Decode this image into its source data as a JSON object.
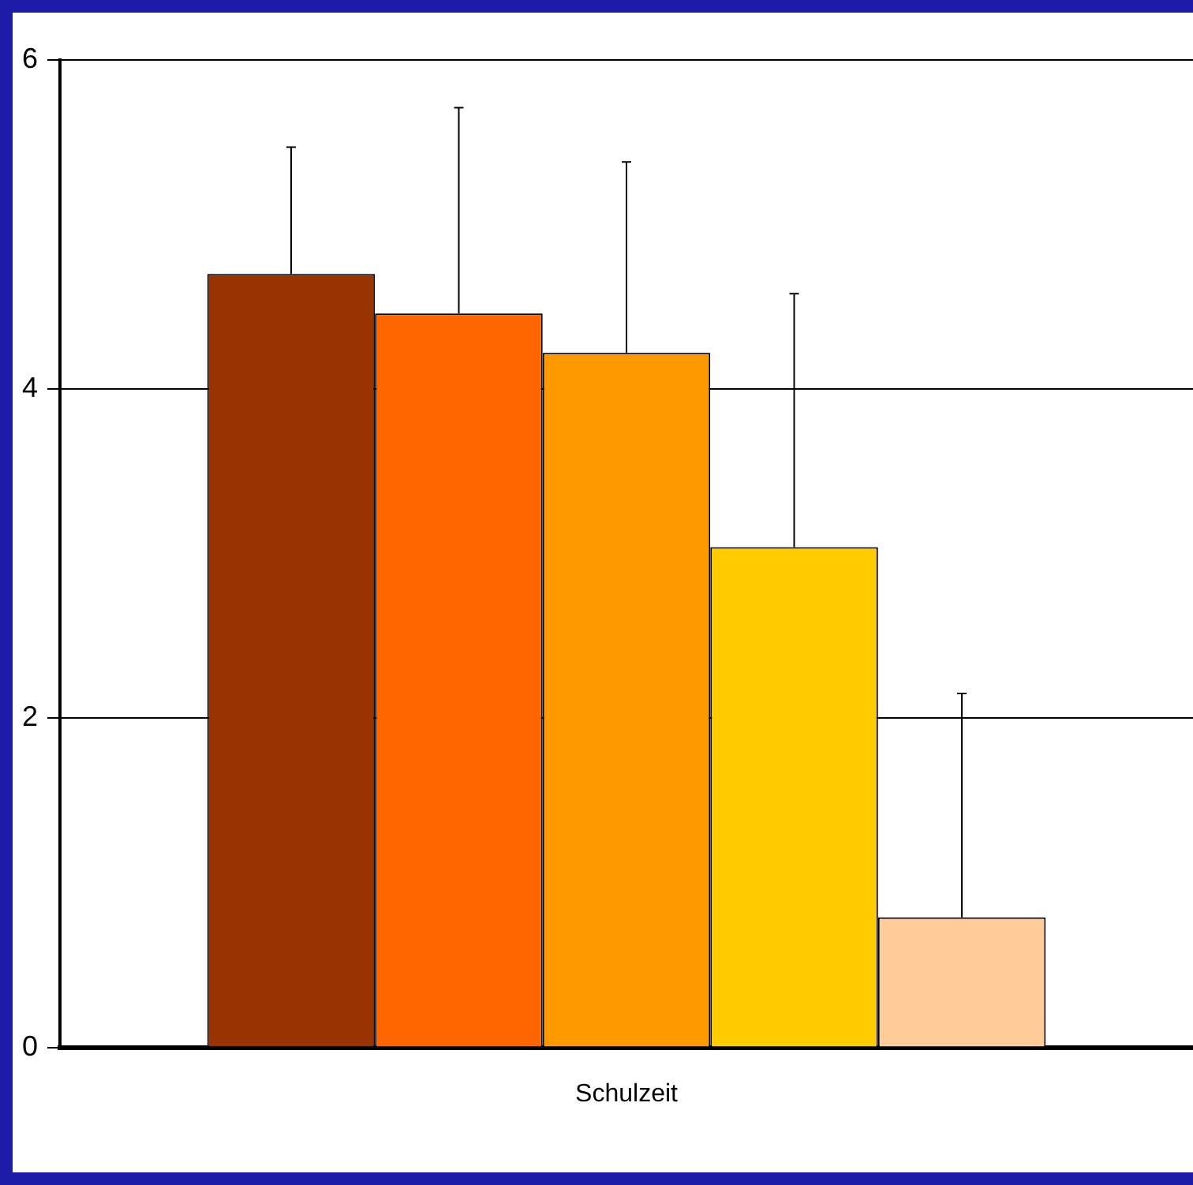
{
  "chart_data": {
    "type": "bar",
    "categories": [
      "Schulzeit"
    ],
    "series": [
      {
        "color": "#993300",
        "values": [
          4.7
        ],
        "errors": [
          [
            4.7,
            5.47
          ]
        ]
      },
      {
        "color": "#ff6600",
        "values": [
          4.46
        ],
        "errors": [
          [
            4.46,
            5.71
          ]
        ]
      },
      {
        "color": "#ff9900",
        "values": [
          4.22
        ],
        "errors": [
          [
            4.22,
            5.38
          ]
        ]
      },
      {
        "color": "#ffcc00",
        "values": [
          3.04
        ],
        "errors": [
          [
            3.04,
            4.58
          ]
        ]
      },
      {
        "color": "#ffcc99",
        "values": [
          0.79
        ],
        "errors": [
          [
            0.79,
            2.15
          ]
        ]
      }
    ],
    "ylim": [
      0,
      6
    ],
    "yticks": [
      0,
      2,
      4,
      6
    ],
    "grid": "y",
    "legend": false
  }
}
